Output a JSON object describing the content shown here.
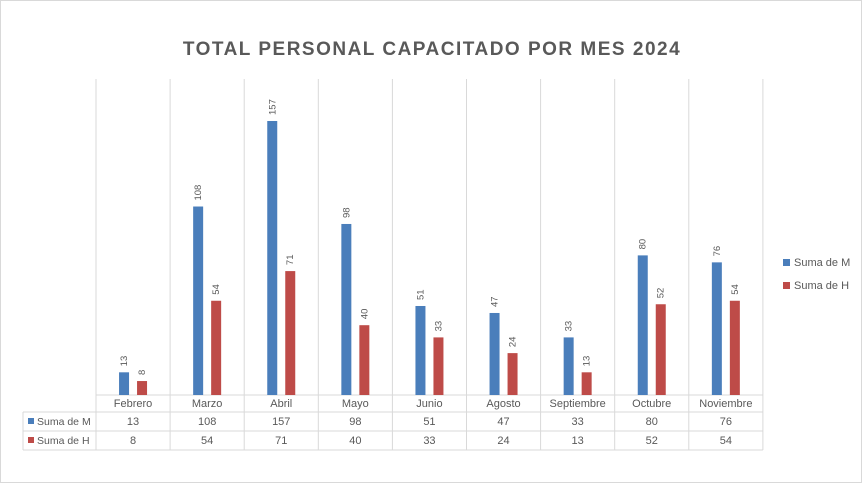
{
  "chart_data": {
    "type": "bar",
    "title": "TOTAL PERSONAL CAPACITADO POR MES 2024",
    "categories": [
      "Febrero",
      "Marzo",
      "Abril",
      "Mayo",
      "Junio",
      "Agosto",
      "Septiembre",
      "Octubre",
      "Noviembre"
    ],
    "series": [
      {
        "name": "Suma de M",
        "color": "#4a7ebb",
        "values": [
          13,
          108,
          157,
          98,
          51,
          47,
          33,
          80,
          76
        ]
      },
      {
        "name": "Suma de H",
        "color": "#be4b48",
        "values": [
          8,
          54,
          71,
          40,
          33,
          24,
          13,
          52,
          54
        ]
      }
    ],
    "ylim": [
      0,
      160
    ],
    "legend": "right",
    "data_table": true,
    "grid": "vertical category separators"
  }
}
